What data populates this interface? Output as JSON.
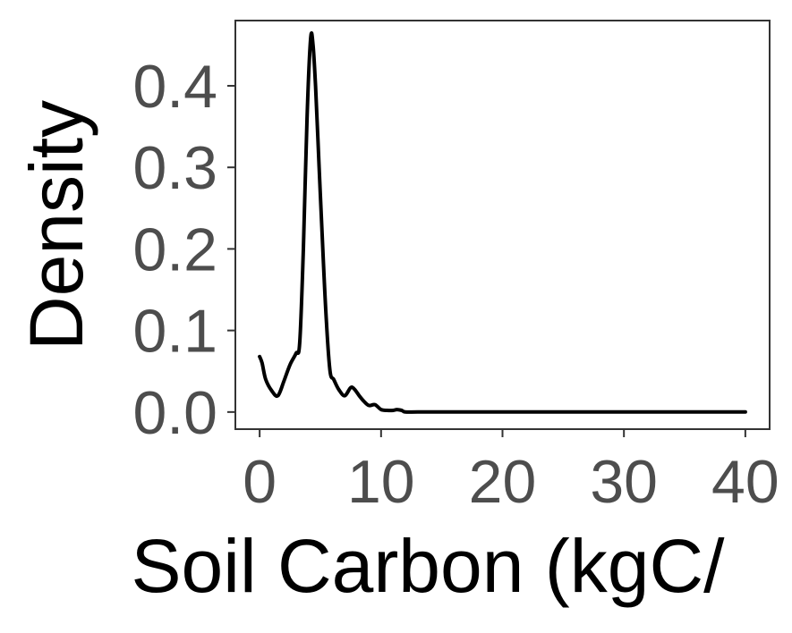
{
  "chart_data": {
    "type": "line",
    "title": "",
    "xlabel": "Soil Carbon (kgC/",
    "ylabel": "Density",
    "xlim": [
      -2,
      42
    ],
    "ylim": [
      -0.021,
      0.48
    ],
    "x_ticks": [
      0,
      10,
      20,
      30,
      40
    ],
    "x_tick_labels": [
      "0",
      "10",
      "20",
      "30",
      "40"
    ],
    "y_ticks": [
      0.0,
      0.1,
      0.2,
      0.3,
      0.4
    ],
    "y_tick_labels": [
      "0.0",
      "0.1",
      "0.2",
      "0.3",
      "0.4"
    ],
    "grid": false,
    "legend": "none",
    "line_color": "#000000",
    "series": [
      {
        "x": [
          0.0,
          0.2,
          0.5,
          1.0,
          1.5,
          2.0,
          2.5,
          3.0,
          3.3,
          3.6,
          3.9,
          4.2,
          4.4,
          4.6,
          4.9,
          5.2,
          5.5,
          5.8,
          6.1,
          6.5,
          7.0,
          7.5,
          7.8,
          8.2,
          8.6,
          9.0,
          9.5,
          10.0,
          10.5,
          11.0,
          11.3,
          11.7,
          12.0,
          13.0,
          15.0,
          20.0,
          25.0,
          30.0,
          35.0,
          40.0
        ],
        "y": [
          0.068,
          0.06,
          0.04,
          0.026,
          0.02,
          0.038,
          0.058,
          0.072,
          0.085,
          0.2,
          0.36,
          0.458,
          0.45,
          0.4,
          0.3,
          0.2,
          0.11,
          0.05,
          0.04,
          0.028,
          0.02,
          0.03,
          0.028,
          0.02,
          0.013,
          0.008,
          0.009,
          0.003,
          0.002,
          0.002,
          0.003,
          0.002,
          0.0,
          0.0,
          0.0,
          0.0,
          0.0,
          0.0,
          0.0,
          0.0
        ]
      }
    ]
  }
}
